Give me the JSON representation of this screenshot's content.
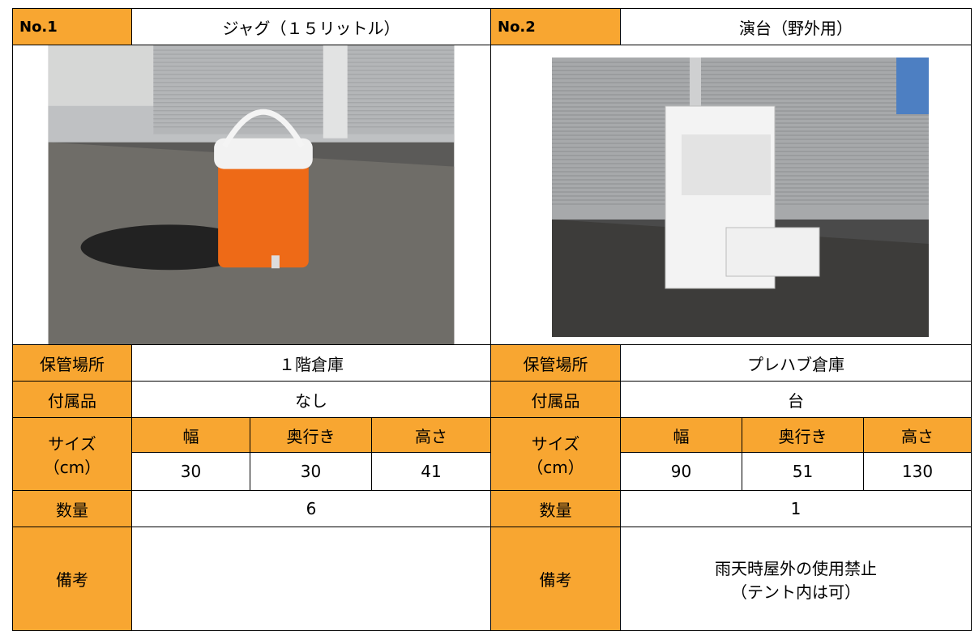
{
  "items": [
    {
      "no": "No.1",
      "name": "ジャグ（１５リットル）",
      "storage_label": "保管場所",
      "storage": "１階倉庫",
      "accessory_label": "付属品",
      "accessory": "なし",
      "size_label": "サイズ",
      "size_unit": "（cm）",
      "size_headers": [
        "幅",
        "奥行き",
        "高さ"
      ],
      "size": [
        30,
        30,
        41
      ],
      "quantity_label": "数量",
      "quantity": 6,
      "notes_label": "備考"
    },
    {
      "no": "No.2",
      "name": "演台（野外用）",
      "storage_label": "保管場所",
      "storage": "プレハブ倉庫",
      "accessory_label": "付属品",
      "accessory": "台",
      "size_label": "サイズ",
      "size_unit": "（cm）",
      "size_headers": [
        "幅",
        "奥行き",
        "高さ"
      ],
      "size": [
        90,
        51,
        130
      ],
      "quantity_label": "数量",
      "quantity": 1,
      "notes_label": "備考",
      "notes": [
        "雨天時屋外の使用禁止",
        "（テント内は可）"
      ]
    }
  ]
}
